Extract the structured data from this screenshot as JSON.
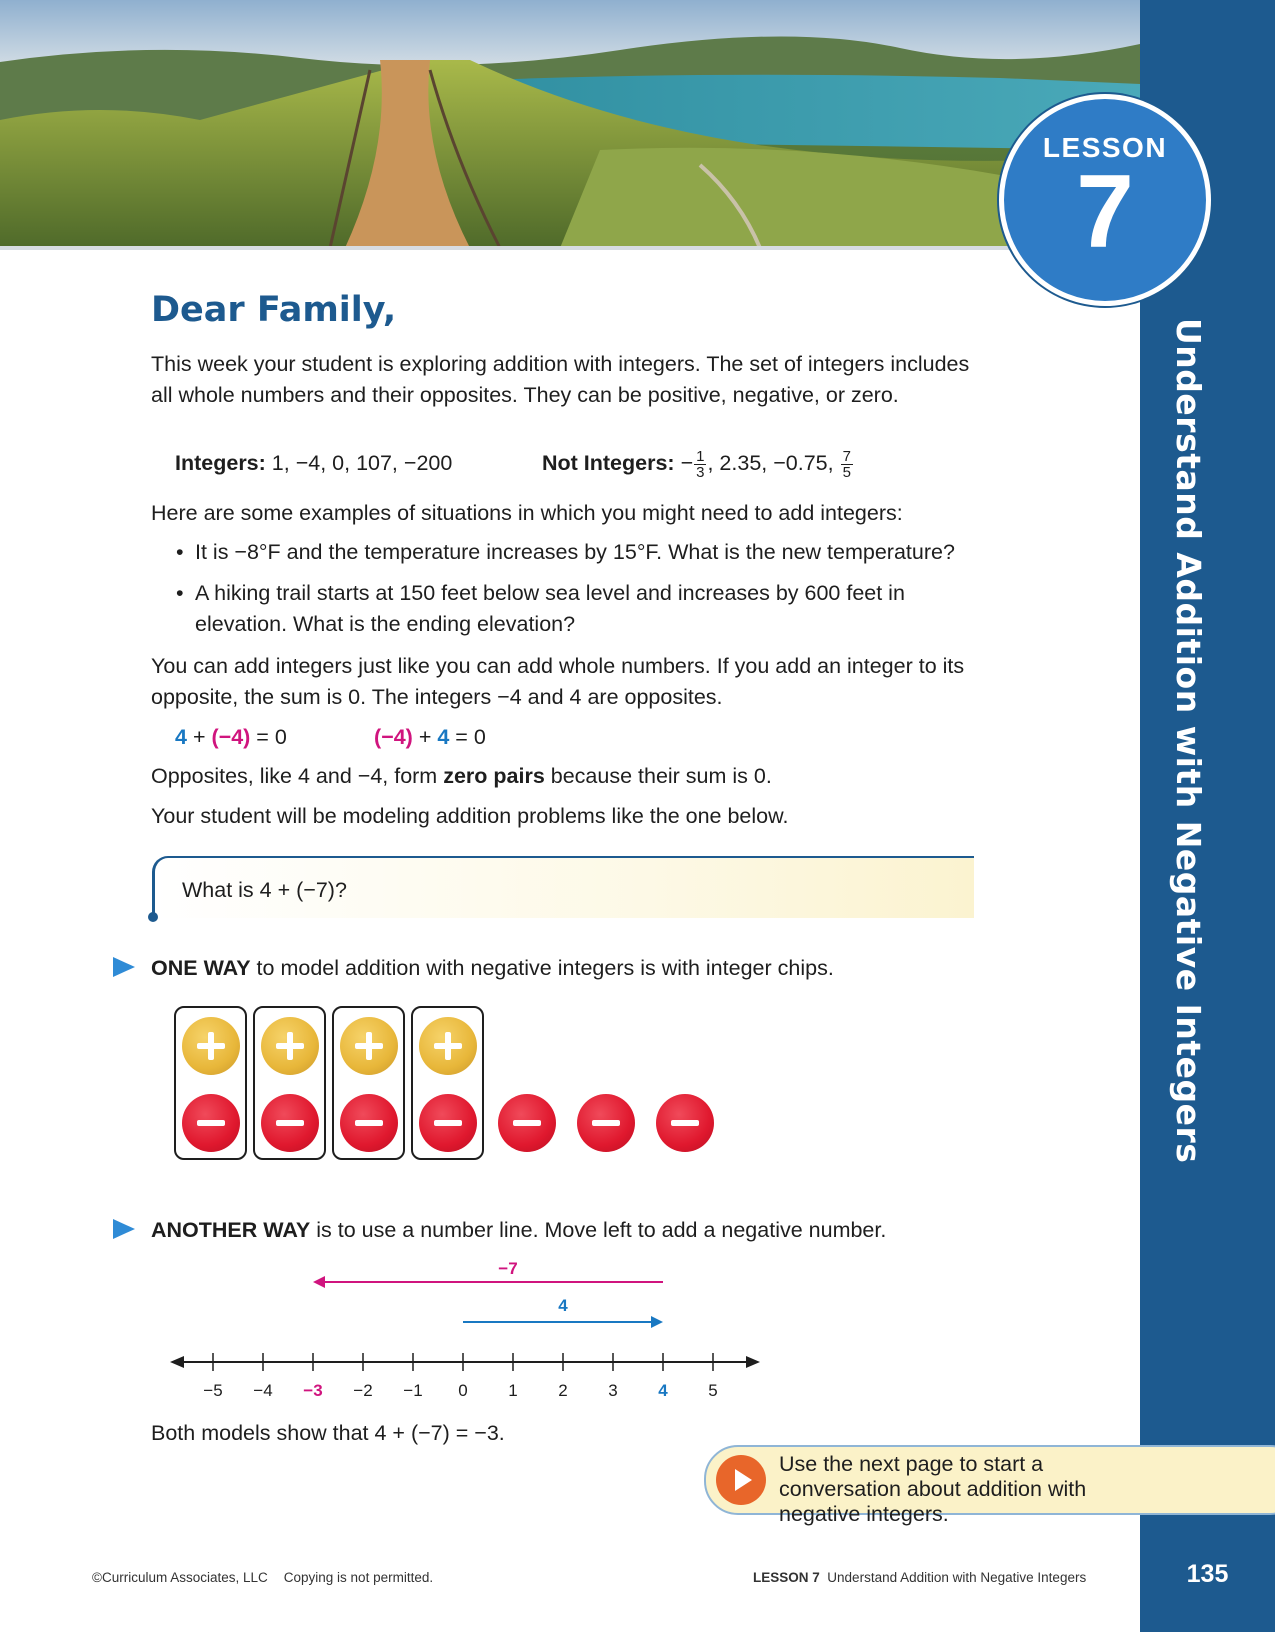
{
  "badge": {
    "word": "LESSON",
    "number": "7"
  },
  "sidebar": {
    "title": "Understand Addition with Negative Integers",
    "page_number": "135"
  },
  "heading": "Dear Family,",
  "intro": "This week your student is exploring addition with integers. The set of integers includes all whole numbers and their opposites. They can be positive, negative, or zero.",
  "integers": {
    "label": "Integers:",
    "values": "1, −4, 0, 107, −200",
    "not_label": "Not Integers:",
    "not_prefix": "−",
    "not_frac_num": "1",
    "not_frac_den": "3",
    "not_values": ", 2.35, −0.75, ",
    "not_frac2_num": "7",
    "not_frac2_den": "5"
  },
  "examples_intro": "Here are some examples of situations in which you might need to add integers:",
  "bullets": [
    "It is −8°F and the temperature increases by 15°F. What is the new temperature?",
    "A hiking trail starts at 150 feet below sea level and increases by 600 feet in elevation. What is the ending elevation?"
  ],
  "opposites_text": "You can add integers just like you can add whole numbers. If you add an integer to its opposite, the sum is 0. The integers −4 and 4 are opposites.",
  "equations": {
    "eq1": {
      "a": "4",
      "op": " + ",
      "b": "(−4)",
      "rest": " = 0"
    },
    "eq2": {
      "a": "(−4)",
      "op": " + ",
      "b": "4",
      "rest": " = 0"
    }
  },
  "zero_pairs": {
    "before": "Opposites, like 4 and −4, form ",
    "bold": "zero pairs",
    "after": " because their sum is 0."
  },
  "modeling_text": "Your student will be modeling addition problems like the one below.",
  "question": "What is 4 + (−7)?",
  "one_way": {
    "bold": "ONE WAY",
    "text": " to model addition with negative integers is with integer chips."
  },
  "chips": {
    "positive": 4,
    "negative": 7,
    "zero_pairs": 4
  },
  "another_way": {
    "bold": "ANOTHER WAY",
    "text": " is to use a number line. Move left to add a negative number."
  },
  "number_line": {
    "ticks": [
      "−5",
      "−4",
      "−3",
      "−2",
      "−1",
      "0",
      "1",
      "2",
      "3",
      "4",
      "5"
    ],
    "highlight_neg": "−3",
    "highlight_pos": "4",
    "arrow_pos_label": "4",
    "arrow_neg_label": "−7",
    "colors": {
      "pos": "#1978c2",
      "neg": "#d0147e"
    }
  },
  "conclusion": "Both models show that 4 + (−7) = −3.",
  "callout": "Use the next page to start a conversation about addition with negative integers.",
  "footer": {
    "copyright": "©Curriculum Associates, LLC",
    "notice": "Copying is not permitted.",
    "lesson": "LESSON 7",
    "lesson_title": "Understand Addition with Negative Integers"
  }
}
